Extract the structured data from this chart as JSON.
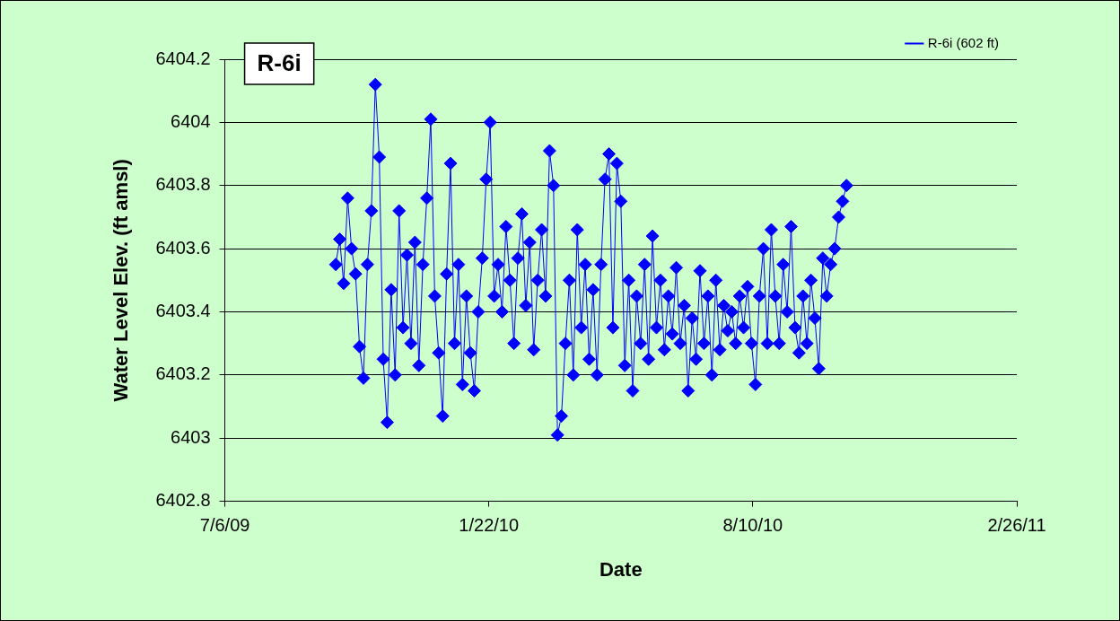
{
  "chart_data": {
    "type": "line",
    "title": "R-6i",
    "xlabel": "Date",
    "ylabel": "Water Level Elev. (ft amsl)",
    "xlim": [
      "2009-07-06",
      "2011-02-26"
    ],
    "xticks": [
      {
        "value": "2009-07-06",
        "label": "7/6/09"
      },
      {
        "value": "2010-01-22",
        "label": "1/22/10"
      },
      {
        "value": "2010-08-10",
        "label": "8/10/10"
      },
      {
        "value": "2011-02-26",
        "label": "2/26/11"
      }
    ],
    "ylim": [
      6402.8,
      6404.2
    ],
    "yticks": [
      6402.8,
      6403,
      6403.2,
      6403.4,
      6403.6,
      6403.8,
      6404,
      6404.2
    ],
    "grid": "y",
    "legend": "top right",
    "marker": "diamond",
    "line_style": "solid",
    "x": [
      "2009-09-28",
      "2009-10-01",
      "2009-10-04",
      "2009-10-07",
      "2009-10-10",
      "2009-10-13",
      "2009-10-16",
      "2009-10-19",
      "2009-10-22",
      "2009-10-25",
      "2009-10-28",
      "2009-10-31",
      "2009-11-03",
      "2009-11-06",
      "2009-11-09",
      "2009-11-12",
      "2009-11-15",
      "2009-11-18",
      "2009-11-21",
      "2009-11-24",
      "2009-11-27",
      "2009-11-30",
      "2009-12-03",
      "2009-12-06",
      "2009-12-09",
      "2009-12-12",
      "2009-12-15",
      "2009-12-18",
      "2009-12-21",
      "2009-12-24",
      "2009-12-27",
      "2009-12-30",
      "2010-01-02",
      "2010-01-05",
      "2010-01-08",
      "2010-01-11",
      "2010-01-14",
      "2010-01-17",
      "2010-01-20",
      "2010-01-23",
      "2010-01-26",
      "2010-01-29",
      "2010-02-01",
      "2010-02-04",
      "2010-02-07",
      "2010-02-10",
      "2010-02-13",
      "2010-02-16",
      "2010-02-19",
      "2010-02-22",
      "2010-02-25",
      "2010-02-28",
      "2010-03-03",
      "2010-03-06",
      "2010-03-09",
      "2010-03-12",
      "2010-03-15",
      "2010-03-18",
      "2010-03-21",
      "2010-03-24",
      "2010-03-27",
      "2010-03-30",
      "2010-04-02",
      "2010-04-05",
      "2010-04-08",
      "2010-04-11",
      "2010-04-14",
      "2010-04-17",
      "2010-04-20",
      "2010-04-23",
      "2010-04-26",
      "2010-04-29",
      "2010-05-02",
      "2010-05-05",
      "2010-05-08",
      "2010-05-11",
      "2010-05-14",
      "2010-05-17",
      "2010-05-20",
      "2010-05-23",
      "2010-05-26",
      "2010-05-29",
      "2010-06-01",
      "2010-06-04",
      "2010-06-07",
      "2010-06-10",
      "2010-06-13",
      "2010-06-16",
      "2010-06-19",
      "2010-06-22",
      "2010-06-25",
      "2010-06-28",
      "2010-07-01",
      "2010-07-04",
      "2010-07-07",
      "2010-07-10",
      "2010-07-13",
      "2010-07-16",
      "2010-07-19",
      "2010-07-22",
      "2010-07-25",
      "2010-07-28",
      "2010-07-31",
      "2010-08-03",
      "2010-08-06",
      "2010-08-09",
      "2010-08-12",
      "2010-08-15",
      "2010-08-18",
      "2010-08-21",
      "2010-08-24",
      "2010-08-27",
      "2010-08-30",
      "2010-09-02",
      "2010-09-05",
      "2010-09-08",
      "2010-09-11",
      "2010-09-14",
      "2010-09-17",
      "2010-09-20",
      "2010-09-23",
      "2010-09-26",
      "2010-09-29",
      "2010-10-02",
      "2010-10-05",
      "2010-10-08",
      "2010-10-11",
      "2010-10-14",
      "2010-10-17",
      "2010-10-20"
    ],
    "series": [
      {
        "name": "R-6i (602 ft)",
        "color": "#0000ff",
        "values": [
          6403.55,
          6403.63,
          6403.49,
          6403.76,
          6403.6,
          6403.52,
          6403.29,
          6403.19,
          6403.55,
          6403.72,
          6404.12,
          6403.89,
          6403.25,
          6403.05,
          6403.47,
          6403.2,
          6403.72,
          6403.35,
          6403.58,
          6403.3,
          6403.62,
          6403.23,
          6403.55,
          6403.76,
          6404.01,
          6403.45,
          6403.27,
          6403.07,
          6403.52,
          6403.87,
          6403.3,
          6403.55,
          6403.17,
          6403.45,
          6403.27,
          6403.15,
          6403.4,
          6403.57,
          6403.82,
          6404.0,
          6403.45,
          6403.55,
          6403.4,
          6403.67,
          6403.5,
          6403.3,
          6403.57,
          6403.71,
          6403.42,
          6403.62,
          6403.28,
          6403.5,
          6403.66,
          6403.45,
          6403.91,
          6403.8,
          6403.01,
          6403.07,
          6403.3,
          6403.5,
          6403.2,
          6403.66,
          6403.35,
          6403.55,
          6403.25,
          6403.47,
          6403.2,
          6403.55,
          6403.82,
          6403.9,
          6403.35,
          6403.87,
          6403.75,
          6403.23,
          6403.5,
          6403.15,
          6403.45,
          6403.3,
          6403.55,
          6403.25,
          6403.64,
          6403.35,
          6403.5,
          6403.28,
          6403.45,
          6403.33,
          6403.54,
          6403.3,
          6403.42,
          6403.15,
          6403.38,
          6403.25,
          6403.53,
          6403.3,
          6403.45,
          6403.2,
          6403.5,
          6403.28,
          6403.42,
          6403.34,
          6403.4,
          6403.3,
          6403.45,
          6403.35,
          6403.48,
          6403.3,
          6403.17,
          6403.45,
          6403.6,
          6403.3,
          6403.66,
          6403.45,
          6403.3,
          6403.55,
          6403.4,
          6403.67,
          6403.35,
          6403.27,
          6403.45,
          6403.3,
          6403.5,
          6403.38,
          6403.22,
          6403.57,
          6403.45,
          6403.55,
          6403.6,
          6403.7,
          6403.75,
          6403.8
        ]
      }
    ]
  }
}
